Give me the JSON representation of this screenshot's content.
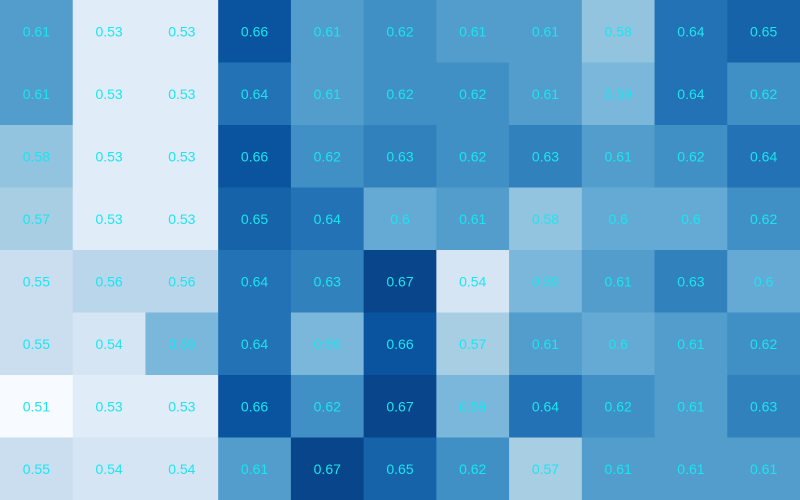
{
  "chart_data": {
    "type": "heatmap",
    "title": "",
    "xlabel": "",
    "ylabel": "",
    "show_axes": false,
    "grid": false,
    "colormap": "Blues",
    "value_range": [
      0.51,
      0.67
    ],
    "label_color": "#19e6f0",
    "rows": [
      [
        0.61,
        0.53,
        0.53,
        0.66,
        0.61,
        0.62,
        0.61,
        0.61,
        0.58,
        0.64,
        0.65
      ],
      [
        0.61,
        0.53,
        0.53,
        0.64,
        0.61,
        0.62,
        0.62,
        0.61,
        0.59,
        0.64,
        0.62
      ],
      [
        0.58,
        0.53,
        0.53,
        0.66,
        0.62,
        0.63,
        0.62,
        0.63,
        0.61,
        0.62,
        0.64
      ],
      [
        0.57,
        0.53,
        0.53,
        0.65,
        0.64,
        0.6,
        0.61,
        0.58,
        0.6,
        0.6,
        0.62
      ],
      [
        0.55,
        0.56,
        0.56,
        0.64,
        0.63,
        0.67,
        0.54,
        0.59,
        0.61,
        0.63,
        0.6
      ],
      [
        0.55,
        0.54,
        0.59,
        0.64,
        0.59,
        0.66,
        0.57,
        0.61,
        0.6,
        0.61,
        0.62
      ],
      [
        0.51,
        0.53,
        0.53,
        0.66,
        0.62,
        0.67,
        0.59,
        0.64,
        0.62,
        0.61,
        0.63
      ],
      [
        0.55,
        0.54,
        0.54,
        0.61,
        0.67,
        0.65,
        0.62,
        0.57,
        0.61,
        0.61,
        0.61
      ]
    ]
  }
}
